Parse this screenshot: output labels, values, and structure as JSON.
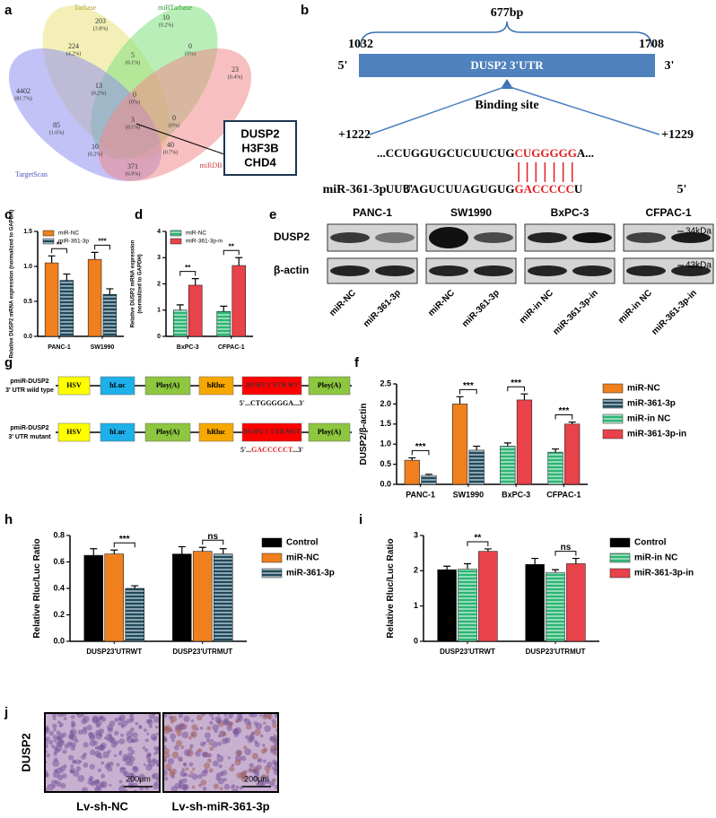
{
  "panel_labels": [
    "a",
    "b",
    "c",
    "d",
    "e",
    "f",
    "g",
    "h",
    "i",
    "j"
  ],
  "venn": {
    "sets": [
      "Tarbase",
      "miRTarbase",
      "TargetScan",
      "miRDB"
    ],
    "regions": [
      {
        "count": "203",
        "percent": "(3.8%)"
      },
      {
        "count": "10",
        "percent": "(0.2%)"
      },
      {
        "count": "224",
        "percent": "(4.2%)"
      },
      {
        "count": "5",
        "percent": "(0.1%)"
      },
      {
        "count": "0",
        "percent": "(0%)"
      },
      {
        "count": "4402",
        "percent": "(81.7%)"
      },
      {
        "count": "13",
        "percent": "(0.2%)"
      },
      {
        "count": "0",
        "percent": "(0%)"
      },
      {
        "count": "23",
        "percent": "(0.4%)"
      },
      {
        "count": "85",
        "percent": "(1.6%)"
      },
      {
        "count": "3",
        "percent": "(0.1%)"
      },
      {
        "count": "0",
        "percent": "(0%)"
      },
      {
        "count": "10",
        "percent": "(0.2%)"
      },
      {
        "count": "40",
        "percent": "(0.7%)"
      },
      {
        "count": "371",
        "percent": "(6.9%)"
      }
    ],
    "genes": [
      "DUSP2",
      "H3F3B",
      "CHD4"
    ]
  },
  "utr": {
    "length": "677bp",
    "start": "1032",
    "end": "1708",
    "five": "5'",
    "three": "3'",
    "name": "DUSP2  3'UTR",
    "site": "Binding site",
    "pos_start": "+1222",
    "pos_end": "+1229",
    "target": [
      "...CCUGGUGCUCUUCUG",
      "CUGGGGG",
      "A..."
    ],
    "mirna_name": "miR-361-3p",
    "mirna_left": "3'",
    "mirna": [
      "UUUAGUCUUAGUGUG",
      "GACCCCC",
      "U"
    ],
    "mirna_right": "5'"
  },
  "blot": {
    "cell_lines": [
      "PANC-1",
      "SW1990",
      "BxPC-3",
      "CFPAC-1"
    ],
    "proteins": [
      "DUSP2",
      "β-actin"
    ],
    "sizes": [
      "34kDa",
      "43kDa"
    ],
    "lanes": [
      "miR-NC",
      "miR-361-3p",
      "miR-NC",
      "miR-361-3p",
      "miR-in NC",
      "miR-361-3p-in",
      "miR-in NC",
      "miR-361-3p-in"
    ]
  },
  "constructs": [
    {
      "name": [
        "pmiR-DUSP2",
        "3' UTR wild type"
      ],
      "elements": [
        "HSV",
        "hLuc",
        "Ploy(A)",
        "hRluc",
        "DUSP2 3' UTR WT",
        "Ploy(A)"
      ],
      "seq": [
        "5'...",
        "CTGGGGGA",
        "...3'"
      ],
      "seq_color": "#000000"
    },
    {
      "name": [
        "pmiR-DUSP2",
        "3' UTR mutant"
      ],
      "elements": [
        "HSV",
        "hLuc",
        "Ploy(A)",
        "hRluc",
        "DUSP2 3' UTR MUT",
        "Ploy(A)"
      ],
      "seq": [
        "5'...",
        "GACCCCCT",
        "...3'"
      ],
      "seq_color": "#e02020"
    }
  ],
  "ihc": {
    "stain": "DUSP2",
    "groups": [
      "Lv-sh-NC",
      "Lv-sh-miR-361-3p"
    ],
    "scale": "200μm"
  },
  "chart_data": [
    {
      "type": "bar",
      "ylabel": [
        "Relative DUSP2 mRNA expression (normalized to GAPDH)"
      ],
      "categories": [
        "PANC-1",
        "SW1990"
      ],
      "series": [
        {
          "name": "miR-NC",
          "color": "#f07f1e",
          "pattern": "solid",
          "values": [
            1.05,
            1.1
          ],
          "errors": [
            0.1,
            0.1
          ]
        },
        {
          "name": "miR-361-3p",
          "color": "#1e4a5c",
          "pattern": "stripes",
          "values": [
            0.8,
            0.6
          ],
          "errors": [
            0.09,
            0.08
          ]
        }
      ],
      "significance": [
        "**",
        "***"
      ],
      "ylim": [
        0,
        1.5
      ],
      "yticks": [
        {
          "value": 0,
          "label": "0.0"
        },
        0.5,
        {
          "value": 1,
          "label": "1.0"
        },
        1.5
      ],
      "legend": "upper left"
    },
    {
      "type": "bar",
      "ylabel": [
        "Relative DUSP2 mRNA expression",
        "(normalized to GAPDH)"
      ],
      "categories": [
        "BxPC-3",
        "CFPAC-1"
      ],
      "series": [
        {
          "name": "miR-NC",
          "color": "#2bb673",
          "pattern": "stripes",
          "values": [
            1.0,
            0.95
          ],
          "errors": [
            0.2,
            0.2
          ]
        },
        {
          "name": "miR-361-3p-in",
          "color": "#e8424a",
          "pattern": "solid",
          "values": [
            1.95,
            2.7
          ],
          "errors": [
            0.25,
            0.3
          ]
        }
      ],
      "significance": [
        "**",
        "**"
      ],
      "ylim": [
        0,
        4
      ],
      "yticks": [
        0,
        1,
        2,
        3,
        4
      ],
      "legend": "upper left"
    },
    {
      "type": "bar",
      "ylabel": [
        "DUSP2/β-actin"
      ],
      "categories": [
        "PANC-1",
        "SW1990",
        "BxPC-3",
        "CFPAC-1"
      ],
      "series": [
        {
          "name": "miR-NC",
          "color": "#f07f1e",
          "pattern": "solid",
          "values": [
            0.6,
            2.0,
            null,
            null
          ],
          "errors": [
            0.06,
            0.18,
            null,
            null
          ]
        },
        {
          "name": "miR-361-3p",
          "color": "#1e4a5c",
          "pattern": "stripes",
          "values": [
            0.22,
            0.85,
            null,
            null
          ],
          "errors": [
            0.03,
            0.1,
            null,
            null
          ]
        },
        {
          "name": "miR-in NC",
          "color": "#2bb673",
          "pattern": "stripes",
          "values": [
            null,
            null,
            0.95,
            0.8
          ],
          "errors": [
            null,
            null,
            0.08,
            0.08
          ]
        },
        {
          "name": "miR-361-3p-in",
          "color": "#e8424a",
          "pattern": "solid",
          "values": [
            null,
            null,
            2.1,
            1.5
          ],
          "errors": [
            null,
            null,
            0.15,
            0.05
          ]
        }
      ],
      "significance": [
        "***",
        "***",
        "***",
        "***"
      ],
      "ylim": [
        0,
        2.5
      ],
      "yticks": [
        {
          "value": 0,
          "label": "0.0"
        },
        0.5,
        {
          "value": 1,
          "label": "1.0"
        },
        1.5,
        {
          "value": 2,
          "label": "2.0"
        },
        2.5
      ],
      "legend": "right"
    },
    {
      "type": "bar",
      "ylabel": [
        "Relative Rluc/Luc Ratio"
      ],
      "categories": [
        "DUSP23'UTRWT",
        "DUSP23'UTRMUT"
      ],
      "series": [
        {
          "name": "Control",
          "color": "#000000",
          "pattern": "solid",
          "values": [
            0.65,
            0.66
          ],
          "errors": [
            0.05,
            0.055
          ]
        },
        {
          "name": "miR-NC",
          "color": "#f07f1e",
          "pattern": "solid",
          "values": [
            0.66,
            0.68
          ],
          "errors": [
            0.03,
            0.03
          ]
        },
        {
          "name": "miR-361-3p",
          "color": "#1e4a5c",
          "pattern": "stripes",
          "values": [
            0.4,
            0.66
          ],
          "errors": [
            0.02,
            0.04
          ]
        }
      ],
      "significance": [
        "***",
        "ns"
      ],
      "ylim": [
        0,
        0.8
      ],
      "yticks": [
        {
          "value": 0,
          "label": "0.0"
        },
        0.2,
        0.4,
        0.6,
        0.8
      ],
      "legend": "right"
    },
    {
      "type": "bar",
      "ylabel": [
        "Relative Rluc/Luc Ratio"
      ],
      "categories": [
        "DUSP23'UTRWT",
        "DUSP23'UTRMUT"
      ],
      "series": [
        {
          "name": "Control",
          "color": "#000000",
          "pattern": "solid",
          "values": [
            2.03,
            2.18
          ],
          "errors": [
            0.1,
            0.17
          ]
        },
        {
          "name": "miR-in NC",
          "color": "#2bb673",
          "pattern": "stripes",
          "values": [
            2.05,
            1.95
          ],
          "errors": [
            0.15,
            0.08
          ]
        },
        {
          "name": "miR-361-3p-in",
          "color": "#e8424a",
          "pattern": "solid",
          "values": [
            2.55,
            2.2
          ],
          "errors": [
            0.07,
            0.15
          ]
        }
      ],
      "significance": [
        "**",
        "ns"
      ],
      "ylim": [
        0,
        3
      ],
      "yticks": [
        0,
        1,
        2,
        3
      ],
      "legend": "right"
    }
  ]
}
